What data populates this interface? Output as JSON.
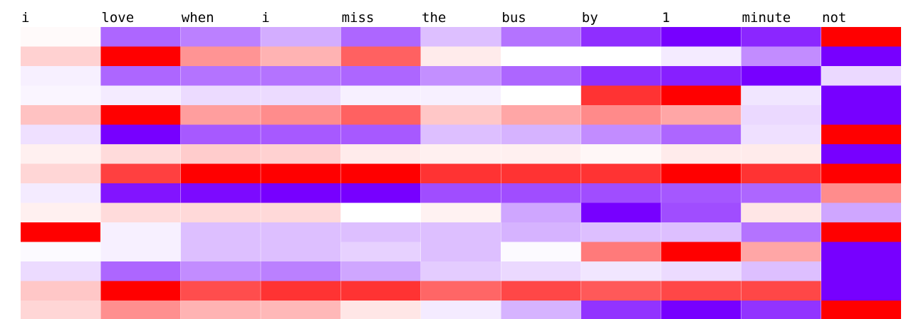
{
  "chart_data": {
    "type": "heatmap",
    "tokens": [
      "i",
      "love",
      "when",
      "i",
      "miss",
      "the",
      "bus",
      "by",
      "1",
      "minute",
      "not"
    ],
    "color_scale": {
      "negative": "#7700ff",
      "neutral": "#ffffff",
      "positive": "#ff0000"
    },
    "columns": [
      [
        0.02,
        0.18,
        -0.06,
        -0.04,
        0.24,
        -0.12,
        0.06,
        0.16,
        -0.08,
        0.06,
        1.0,
        -0.02,
        -0.14,
        0.22,
        0.16
      ],
      [
        -0.6,
        1.0,
        -0.6,
        -0.08,
        1.0,
        -1.0,
        0.14,
        0.75,
        -0.92,
        0.14,
        -0.06,
        -0.06,
        -0.6,
        1.0,
        0.44
      ],
      [
        -0.5,
        0.42,
        -0.55,
        -0.14,
        0.38,
        -0.65,
        0.2,
        1.0,
        -0.96,
        0.15,
        -0.25,
        -0.25,
        -0.45,
        0.7,
        0.3
      ],
      [
        -0.32,
        0.3,
        -0.55,
        -0.14,
        0.45,
        -0.65,
        0.18,
        1.0,
        -1.0,
        0.15,
        -0.25,
        -0.25,
        -0.5,
        0.8,
        0.28
      ],
      [
        -0.6,
        0.62,
        -0.6,
        -0.06,
        0.62,
        -0.65,
        0.08,
        1.0,
        -1.0,
        0.0,
        -0.25,
        -0.18,
        -0.35,
        0.8,
        0.1
      ],
      [
        -0.25,
        0.08,
        -0.44,
        -0.06,
        0.22,
        -0.25,
        0.06,
        0.8,
        -0.7,
        0.05,
        -0.25,
        -0.25,
        -0.2,
        0.6,
        -0.08
      ],
      [
        -0.55,
        0.0,
        -0.6,
        0.0,
        0.35,
        -0.3,
        0.06,
        0.8,
        -0.7,
        -0.35,
        -0.3,
        -0.02,
        -0.15,
        0.72,
        -0.3
      ],
      [
        -0.82,
        0.0,
        -0.82,
        0.8,
        0.46,
        -0.45,
        0.03,
        0.8,
        -0.7,
        -1.0,
        -0.25,
        0.52,
        -0.1,
        0.65,
        -0.8
      ],
      [
        -1.0,
        -0.08,
        -0.88,
        1.0,
        0.35,
        -0.6,
        0.08,
        1.0,
        -0.66,
        -0.7,
        -0.25,
        1.0,
        -0.14,
        0.72,
        -1.0
      ],
      [
        -0.85,
        -0.45,
        -1.0,
        -0.1,
        -0.15,
        -0.12,
        0.08,
        0.8,
        -0.6,
        0.1,
        -0.55,
        0.35,
        -0.25,
        0.72,
        -0.8
      ],
      [
        1.0,
        -1.0,
        -0.15,
        -1.0,
        -1.0,
        1.0,
        -1.0,
        1.0,
        0.45,
        -0.35,
        1.0,
        -1.0,
        -1.0,
        -1.0,
        1.0
      ]
    ]
  }
}
